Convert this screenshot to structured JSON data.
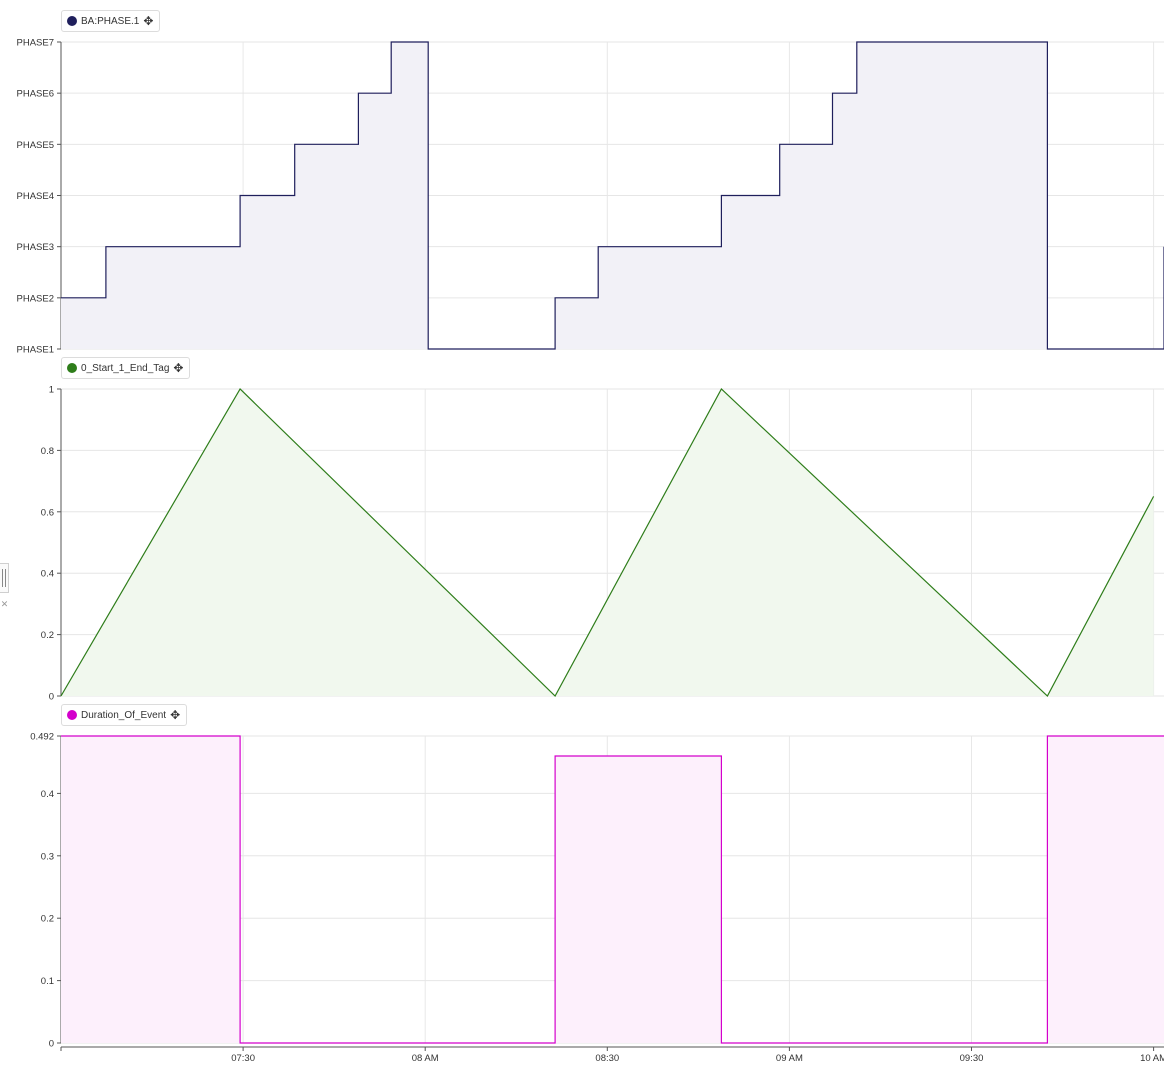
{
  "x_axis": {
    "ticks": [
      {
        "t": 450,
        "label": "07:30"
      },
      {
        "t": 480,
        "label": "08 AM"
      },
      {
        "t": 510,
        "label": "08:30"
      },
      {
        "t": 540,
        "label": "09 AM"
      },
      {
        "t": 570,
        "label": "09:30"
      },
      {
        "t": 600,
        "label": "10 AM"
      }
    ]
  },
  "chart_data": [
    {
      "type": "line",
      "step": true,
      "legend": {
        "label": "BA:PHASE.1",
        "color": "#1f1f5c"
      },
      "fill_color": "#f2f1f7",
      "y_categories": [
        "PHASE1",
        "PHASE2",
        "PHASE3",
        "PHASE4",
        "PHASE5",
        "PHASE6",
        "PHASE7"
      ],
      "ylim": [
        1,
        7
      ],
      "series": [
        {
          "x": [
            420.0,
            427.4,
            449.5,
            458.5,
            469.0,
            474.4,
            480.5,
            501.4,
            508.5,
            528.8,
            538.4,
            547.1,
            551.1,
            582.5,
            603.3,
            610.8,
            620
          ],
          "values": [
            2,
            3,
            4,
            5,
            6,
            7,
            1,
            2,
            3,
            4,
            5,
            6,
            7,
            1,
            2,
            3,
            3
          ]
        }
      ]
    },
    {
      "type": "area",
      "legend": {
        "label": "0_Start_1_End_Tag",
        "color": "#2e7d1a"
      },
      "fill_color": "#f1f8ee",
      "ylim": [
        0,
        1
      ],
      "y_ticks": [
        "0",
        "0.2",
        "0.4",
        "0.6",
        "0.8",
        "1"
      ],
      "series": [
        {
          "x": [
            420.0,
            449.5,
            501.4,
            528.8,
            582.5,
            600
          ],
          "values": [
            0,
            1,
            0,
            1,
            0,
            0.65
          ]
        }
      ]
    },
    {
      "type": "line",
      "step": true,
      "legend": {
        "label": "Duration_Of_Event",
        "color": "#d400cc"
      },
      "fill_color": "#fdf0fc",
      "ylim": [
        0,
        0.492
      ],
      "y_ticks": [
        "0",
        "0.1",
        "0.2",
        "0.3",
        "0.4",
        "0.492"
      ],
      "series": [
        {
          "x": [
            420.0,
            449.5,
            501.4,
            528.8,
            582.5,
            620
          ],
          "values": [
            0.492,
            0,
            0.46,
            0,
            0.492,
            0.492
          ]
        }
      ]
    }
  ]
}
